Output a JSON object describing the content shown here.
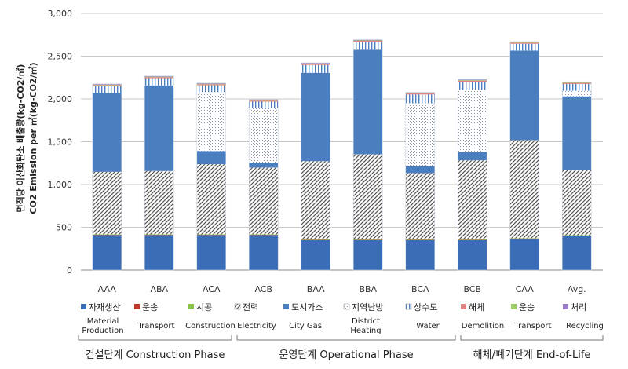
{
  "chart_data": {
    "type": "bar",
    "stacked": true,
    "categories": [
      "AAA",
      "ABA",
      "ACA",
      "ACB",
      "BAA",
      "BBA",
      "BCA",
      "BCB",
      "CAA",
      "Avg."
    ],
    "ylabel_ko": "면적당 이산화탄소 배출량(kg-CO2/㎡)",
    "ylabel_en": "CO2 Emission per ㎡(kg-CO2/㎡)",
    "ylim": [
      0,
      3000
    ],
    "yticks": [
      0,
      500,
      1000,
      1500,
      2000,
      2500,
      3000
    ],
    "ytick_labels": [
      "0",
      "500",
      "1,000",
      "1,500",
      "2,000",
      "2,500",
      "3,000"
    ],
    "grid": true,
    "series": [
      {
        "key": "material",
        "name_ko": "자재생산",
        "name_en": "Material Production",
        "color": "#3a6db5",
        "pattern": "solid",
        "values": [
          410,
          410,
          410,
          410,
          350,
          350,
          350,
          350,
          365,
          400
        ]
      },
      {
        "key": "transport1",
        "name_ko": "운송",
        "name_en": "Transport",
        "color": "#c0392b",
        "pattern": "solid",
        "values": [
          5,
          5,
          5,
          5,
          5,
          5,
          5,
          5,
          5,
          5
        ]
      },
      {
        "key": "construction",
        "name_ko": "시공",
        "name_en": "Construction",
        "color": "#8bc34a",
        "pattern": "solid",
        "values": [
          3,
          3,
          3,
          3,
          3,
          3,
          3,
          3,
          3,
          3
        ]
      },
      {
        "key": "electricity",
        "name_ko": "전력",
        "name_en": "Electricity",
        "color": "#555555",
        "pattern": "diag",
        "values": [
          730,
          740,
          820,
          780,
          915,
          995,
          775,
          925,
          1145,
          765
        ]
      },
      {
        "key": "citygas",
        "name_ko": "도시가스",
        "name_en": "City Gas",
        "color": "#4a7ebf",
        "pattern": "solid",
        "values": [
          922,
          1000,
          152,
          55,
          1032,
          1222,
          82,
          97,
          1047,
          857
        ]
      },
      {
        "key": "district",
        "name_ko": "지역난방",
        "name_en": "District Heating",
        "color": "#aab4c8",
        "pattern": "dots",
        "values": [
          0,
          0,
          690,
          640,
          0,
          0,
          735,
          725,
          0,
          65
        ]
      },
      {
        "key": "water",
        "name_ko": "상수도",
        "name_en": "Water",
        "color": "#4a7ebf",
        "pattern": "vlines",
        "values": [
          80,
          85,
          80,
          75,
          92,
          92,
          102,
          97,
          80,
          80
        ]
      },
      {
        "key": "demolition",
        "name_ko": "해체",
        "name_en": "Demolition",
        "color": "#e08080",
        "pattern": "solid",
        "values": [
          12,
          12,
          12,
          12,
          12,
          12,
          12,
          12,
          12,
          12
        ]
      },
      {
        "key": "transport2",
        "name_ko": "운송",
        "name_en": "Transport",
        "color": "#9ccc65",
        "pattern": "solid",
        "values": [
          5,
          5,
          5,
          5,
          5,
          5,
          5,
          5,
          5,
          5
        ]
      },
      {
        "key": "recycling",
        "name_ko": "처리",
        "name_en": "Recycling",
        "color": "#9b7fc7",
        "pattern": "solid",
        "values": [
          8,
          8,
          8,
          8,
          8,
          8,
          8,
          8,
          8,
          8
        ]
      }
    ],
    "phases": [
      {
        "label": "건설단계 Construction Phase",
        "from": 0,
        "to": 2
      },
      {
        "label": "운영단계 Operational Phase",
        "from": 3,
        "to": 6
      },
      {
        "label": "해체/폐기단계 End-of-Life",
        "from": 7,
        "to": 9
      }
    ]
  }
}
